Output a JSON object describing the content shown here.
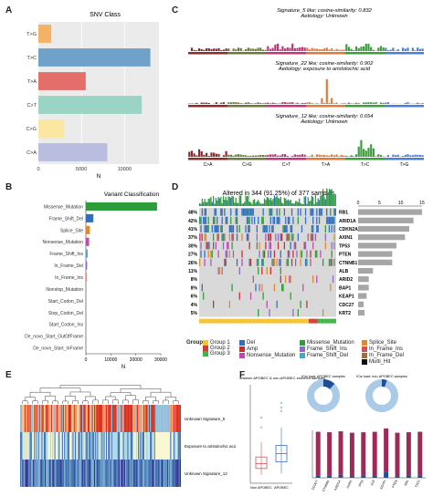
{
  "panels": {
    "a": "A",
    "b": "B",
    "c": "C",
    "d": "D",
    "e": "E",
    "f": "F"
  },
  "chart_data": [
    {
      "panel": "A",
      "type": "bar",
      "orientation": "horizontal",
      "title": "SNV Class",
      "xlabel": "N",
      "categories": [
        "T>G",
        "T>C",
        "T>A",
        "C>T",
        "C>G",
        "C>A"
      ],
      "values": [
        1500,
        13000,
        5500,
        12000,
        3000,
        8000
      ],
      "colors": [
        "#f4b266",
        "#6fa1c9",
        "#e46f6a",
        "#9bd3c4",
        "#f9e7a2",
        "#b9bde0"
      ],
      "xticks": [
        0,
        5000,
        10000
      ],
      "xlim": [
        0,
        14000
      ],
      "grid": true
    },
    {
      "panel": "B",
      "type": "bar",
      "orientation": "horizontal",
      "title": "Variant Classification",
      "xlabel": "N",
      "categories": [
        "Missense_Mutation",
        "Frame_Shift_Del",
        "Splice_Site",
        "Nonsense_Mutation",
        "Frame_Shift_Ins",
        "In_Frame_Del",
        "In_Frame_Ins",
        "Nonstop_Mutation",
        "Start_Codon_Del",
        "Stop_Codon_Del",
        "Start_Codon_Ins",
        "De_novo_Start_OutOfFrame",
        "De_novo_Start_InFrame"
      ],
      "values": [
        28500,
        3000,
        1600,
        1300,
        700,
        500,
        250,
        50,
        30,
        20,
        10,
        10,
        10
      ],
      "colors": [
        "#2e9c3a",
        "#2f6fbf",
        "#e08a2a",
        "#c24aa8",
        "#4aa3c8",
        "#8a6ac4",
        "#d85050",
        "#999999",
        "#999999",
        "#999999",
        "#999999",
        "#999999",
        "#999999"
      ],
      "xticks": [
        0,
        10000,
        20000,
        30000
      ],
      "xlim": [
        0,
        30000
      ]
    },
    {
      "panel": "C",
      "type": "bar",
      "signatures": [
        {
          "title": "Signature_5 like; cosine-similarity: 0.832",
          "subtitle": "Aetiology: Unknown"
        },
        {
          "title": "Signature_22 like; cosine-similarity: 0.902",
          "subtitle": "Aetiology: exposure to aristolochic acid"
        },
        {
          "title": "Signature_12 like; cosine-similarity: 0.654",
          "subtitle": "Aetiology: Unknown"
        }
      ],
      "categories": [
        "C>A",
        "C>G",
        "C>T",
        "T>A",
        "T>C",
        "T>G"
      ],
      "category_colors": [
        "#8b2c2c",
        "#6b7a3a",
        "#c0357c",
        "#e07a3a",
        "#3c9e3c",
        "#4a7fd6"
      ]
    },
    {
      "panel": "D",
      "type": "heatmap",
      "title": "Altered in 344 (91.25%) of 377 samples.",
      "genes": [
        "RB1",
        "ARID1A",
        "CDKN2A",
        "AXIN1",
        "TP53",
        "PTEN",
        "CTNNB1",
        "ALB",
        "ARID2",
        "BAP1",
        "KEAP1",
        "CDC27",
        "KRT2"
      ],
      "percents": [
        "48%",
        "42%",
        "41%",
        "37%",
        "30%",
        "27%",
        "26%",
        "11%",
        "8%",
        "8%",
        "6%",
        "4%",
        "5%"
      ],
      "side_values": [
        15,
        13,
        12,
        11,
        9,
        8,
        8,
        3.5,
        2.5,
        2.5,
        2,
        1.3,
        1.5
      ],
      "side_ticks": [
        0,
        5,
        10,
        15
      ],
      "legend": [
        {
          "label": "Del",
          "color": "#2f6fbf"
        },
        {
          "label": "Missense_Mutation",
          "color": "#2e9c3a"
        },
        {
          "label": "Splice_Site",
          "color": "#e08a2a"
        },
        {
          "label": "Amp",
          "color": "#c23030"
        },
        {
          "label": "Frame_Shift_Ins",
          "color": "#8a6ac4"
        },
        {
          "label": "In_Frame_Ins",
          "color": "#d85050"
        },
        {
          "label": "Nonsense_Mutation",
          "color": "#c24aa8"
        },
        {
          "label": "Frame_Shift_Del",
          "color": "#4aa3c8"
        },
        {
          "label": "In_Frame_Del",
          "color": "#9c6e3a"
        },
        {
          "label": "Multi_Hit",
          "color": "#111111"
        }
      ],
      "group_legend": {
        "title": "Group",
        "items": [
          {
            "label": "Group 1",
            "color": "#f2c230"
          },
          {
            "label": "Group 2",
            "color": "#d13b3b"
          },
          {
            "label": "Group 3",
            "color": "#3db34a"
          }
        ]
      }
    },
    {
      "panel": "E",
      "type": "heatmap",
      "rows": [
        "Unknown Signature_5",
        "Exposure to aristolochic acid",
        "Unknown Signature_12"
      ]
    },
    {
      "panel": "F",
      "type": "box",
      "title": "Mutation load between APOBEC & non-APOBEC enriched samples",
      "categories": [
        "Non APOBEC",
        "APOBEC"
      ],
      "pies": [
        {
          "title": "tCw load: APOBEC samples",
          "fraction": 0.12
        },
        {
          "title": "tCw load: non-APOBEC samples",
          "fraction": 0.05
        }
      ],
      "bars_categories": [
        "CCDC7",
        "CTNNB1",
        "ARID1A",
        "AXIN1",
        "TP53",
        "ALB",
        "KEAP1",
        "PTEN",
        "RB1",
        "TSC2"
      ],
      "bars_values": [
        0.92,
        0.92,
        0.92,
        0.92,
        0.92,
        0.92,
        0.92,
        0.92,
        0.92,
        0.92
      ],
      "bars_values_small": [
        0.05,
        0.04,
        0.06,
        0.03,
        0.04,
        0.05,
        0.12,
        0.03,
        0.04,
        0.05
      ]
    }
  ]
}
